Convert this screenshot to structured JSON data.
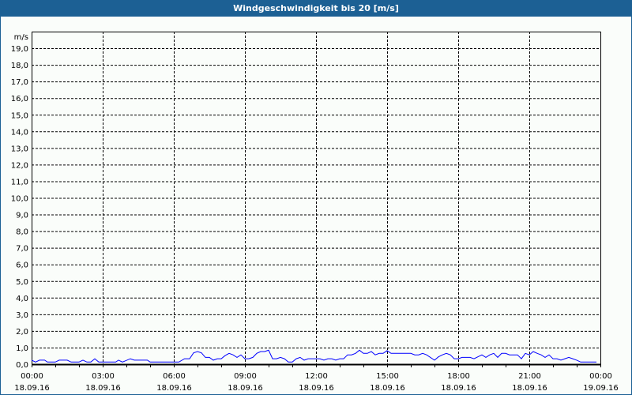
{
  "chart_data": {
    "type": "line",
    "title": "Windgeschwindigkeit bis 20 [m/s]",
    "ylabel": "m/s",
    "xlabel": "",
    "ylim": [
      0,
      20
    ],
    "xlim": [
      "18.09.16 00:00",
      "19.09.16 00:00"
    ],
    "grid": true,
    "line_color": "#0000ff",
    "y_ticks": [
      "0,0",
      "1,0",
      "2,0",
      "3,0",
      "4,0",
      "5,0",
      "6,0",
      "7,0",
      "8,0",
      "9,0",
      "10,0",
      "11,0",
      "12,0",
      "13,0",
      "14,0",
      "15,0",
      "16,0",
      "17,0",
      "18,0",
      "19,0"
    ],
    "x_ticks": [
      {
        "time": "00:00",
        "date": "18.09.16"
      },
      {
        "time": "03:00",
        "date": "18.09.16"
      },
      {
        "time": "06:00",
        "date": "18.09.16"
      },
      {
        "time": "09:00",
        "date": "18.09.16"
      },
      {
        "time": "12:00",
        "date": "18.09.16"
      },
      {
        "time": "15:00",
        "date": "18.09.16"
      },
      {
        "time": "18:00",
        "date": "18.09.16"
      },
      {
        "time": "21:00",
        "date": "18.09.16"
      },
      {
        "time": "00:00",
        "date": "19.09.16"
      }
    ],
    "series": [
      {
        "x": [
          "00:00",
          "00:10",
          "00:20",
          "00:33",
          "00:40",
          "01:00",
          "01:10",
          "01:30",
          "01:40",
          "02:00",
          "02:10",
          "02:20",
          "02:30",
          "02:40",
          "02:50",
          "03:33",
          "03:40",
          "03:50",
          "04:10",
          "04:20",
          "04:53",
          "05:00",
          "06:13",
          "06:27",
          "06:40",
          "06:50",
          "07:00",
          "07:10",
          "07:20",
          "07:30",
          "07:40",
          "07:50",
          "08:00",
          "08:10",
          "08:20",
          "08:30",
          "08:40",
          "08:50",
          "09:00",
          "09:10",
          "09:20",
          "09:30",
          "09:40",
          "09:50",
          "10:00",
          "10:10",
          "10:20",
          "10:30",
          "10:40",
          "10:50",
          "11:00",
          "11:10",
          "11:20",
          "11:30",
          "11:40",
          "12:10",
          "12:20",
          "12:30",
          "12:40",
          "12:50",
          "13:00",
          "13:10",
          "13:20",
          "13:30",
          "13:40",
          "13:50",
          "14:00",
          "14:10",
          "14:20",
          "14:30",
          "14:40",
          "14:50",
          "15:00",
          "15:10",
          "16:00",
          "16:10",
          "16:20",
          "16:30",
          "16:40",
          "17:00",
          "17:10",
          "17:20",
          "17:30",
          "17:40",
          "17:50",
          "18:00",
          "18:10",
          "18:30",
          "18:40",
          "19:00",
          "19:10",
          "19:20",
          "19:30",
          "19:40",
          "19:50",
          "20:00",
          "20:10",
          "20:30",
          "20:40",
          "20:50",
          "21:00",
          "21:10",
          "21:20",
          "21:30",
          "21:40",
          "21:50",
          "22:00",
          "22:10",
          "22:20",
          "22:30",
          "22:40",
          "22:50",
          "23:00",
          "23:10",
          "23:50"
        ],
        "values": [
          0.24,
          0.13,
          0.24,
          0.24,
          0.13,
          0.13,
          0.24,
          0.24,
          0.13,
          0.13,
          0.24,
          0.13,
          0.13,
          0.33,
          0.13,
          0.13,
          0.24,
          0.13,
          0.33,
          0.24,
          0.24,
          0.13,
          0.13,
          0.33,
          0.33,
          0.68,
          0.76,
          0.68,
          0.41,
          0.41,
          0.24,
          0.33,
          0.33,
          0.52,
          0.65,
          0.56,
          0.41,
          0.56,
          0.33,
          0.33,
          0.41,
          0.65,
          0.76,
          0.76,
          0.84,
          0.33,
          0.33,
          0.41,
          0.33,
          0.13,
          0.13,
          0.33,
          0.41,
          0.24,
          0.33,
          0.33,
          0.24,
          0.33,
          0.33,
          0.24,
          0.33,
          0.33,
          0.56,
          0.56,
          0.65,
          0.84,
          0.65,
          0.65,
          0.76,
          0.56,
          0.65,
          0.65,
          0.81,
          0.65,
          0.65,
          0.56,
          0.56,
          0.65,
          0.56,
          0.24,
          0.44,
          0.56,
          0.65,
          0.56,
          0.33,
          0.33,
          0.41,
          0.41,
          0.33,
          0.56,
          0.41,
          0.56,
          0.65,
          0.41,
          0.65,
          0.65,
          0.56,
          0.56,
          0.33,
          0.65,
          0.56,
          0.76,
          0.65,
          0.56,
          0.41,
          0.56,
          0.33,
          0.33,
          0.24,
          0.33,
          0.41,
          0.33,
          0.24,
          0.13,
          0.13
        ]
      }
    ]
  }
}
